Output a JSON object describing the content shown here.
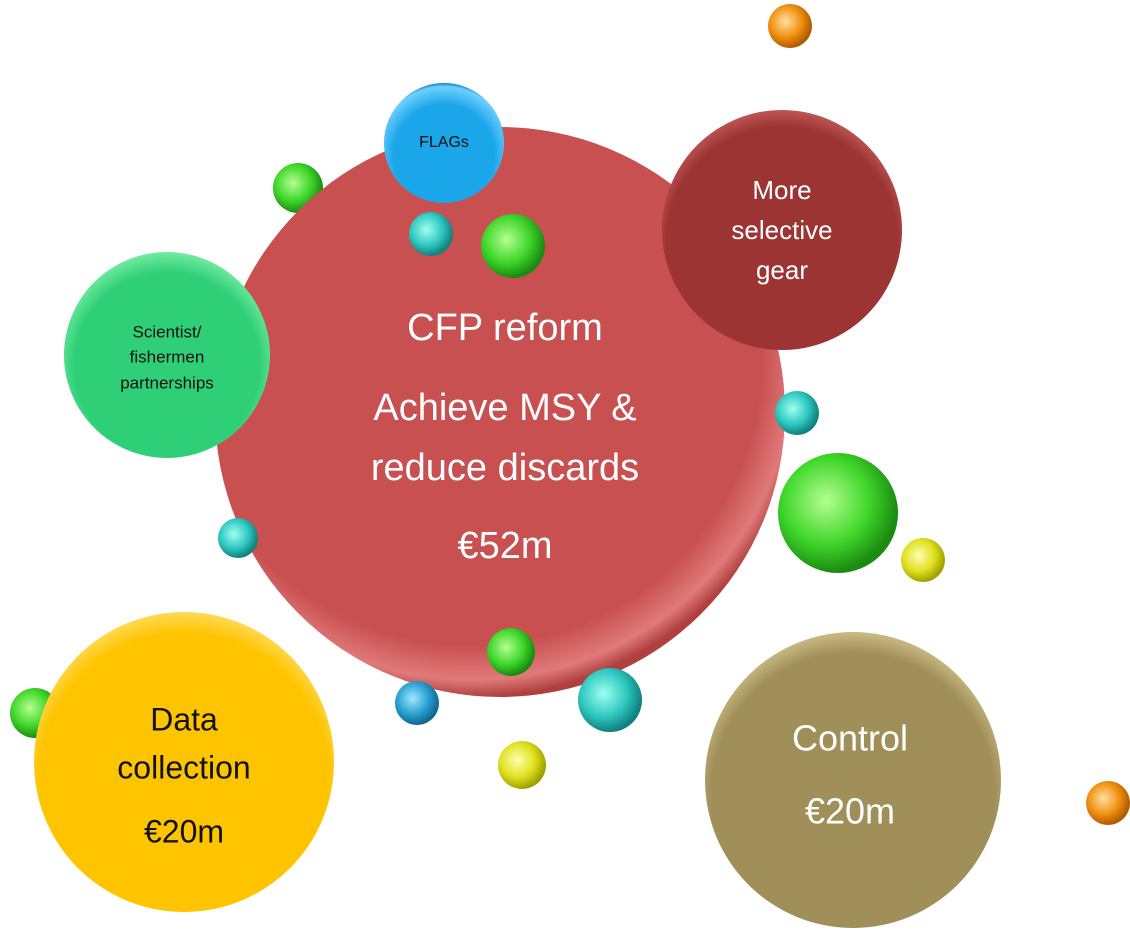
{
  "nodes": [
    {
      "lines": [
        "CFP reform",
        "Achieve MSY &",
        "reduce discards",
        "€52m"
      ]
    },
    {
      "lines": [
        "FLAGs"
      ]
    },
    {
      "lines": [
        "More",
        "selective",
        "gear"
      ]
    },
    {
      "lines": [
        "Scientist/",
        "fishermen",
        "partnerships"
      ]
    },
    {
      "lines": [
        "Data",
        "collection",
        "€20m"
      ]
    },
    {
      "lines": [
        "Control",
        "€20m"
      ]
    }
  ]
}
